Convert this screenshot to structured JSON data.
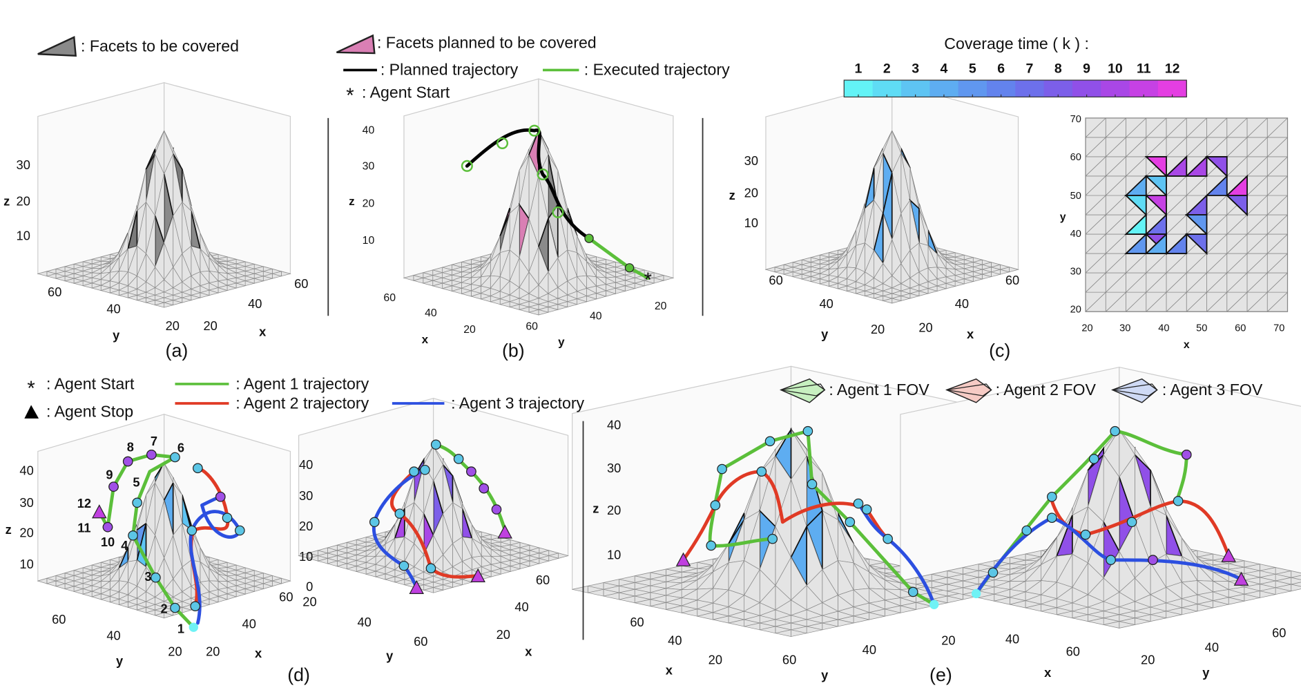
{
  "legend_top": {
    "facets_to_cover": ": Facets to be covered",
    "facets_planned": ": Facets planned to be covered",
    "planned_trajectory": ": Planned trajectory",
    "executed_trajectory": ": Executed trajectory",
    "agent_start": ": Agent Start"
  },
  "colorbar": {
    "title": "Coverage time ( k ) :",
    "ticks": [
      1,
      2,
      3,
      4,
      5,
      6,
      7,
      8,
      9,
      10,
      11,
      12
    ],
    "colors": [
      "#63f3f6",
      "#5fdcf5",
      "#5ec4f3",
      "#5eadf1",
      "#6097ef",
      "#6383ed",
      "#6d70eb",
      "#7c5fe9",
      "#9050e8",
      "#a947e6",
      "#c641e4",
      "#e43ee2"
    ]
  },
  "legend_d": {
    "agent_start": ": Agent Start",
    "agent_stop": ": Agent Stop",
    "agent1": ": Agent 1 trajectory",
    "agent2": ": Agent 2 trajectory",
    "agent3": ": Agent 3 trajectory"
  },
  "legend_e": {
    "agent1_fov": ": Agent 1 FOV",
    "agent2_fov": ": Agent 2 FOV",
    "agent3_fov": ": Agent 3 FOV"
  },
  "panels": {
    "a": {
      "label": "(a)",
      "z_label": "z",
      "z_ticks": [
        10,
        20,
        30
      ],
      "y_label": "y",
      "y_ticks": [
        20,
        40,
        60
      ],
      "x_label": "x",
      "x_ticks": [
        20,
        40,
        60
      ]
    },
    "b": {
      "label": "(b)",
      "z_label": "z",
      "z_ticks": [
        10,
        20,
        30,
        40
      ],
      "x_label": "x",
      "x_ticks": [
        20,
        40,
        60
      ],
      "y_label": "y",
      "y_ticks": [
        20,
        40,
        60
      ]
    },
    "c": {
      "label": "(c)",
      "z_label": "z",
      "z_ticks": [
        10,
        20,
        30
      ],
      "y_label": "y",
      "y_ticks": [
        20,
        40,
        60
      ],
      "x_label": "x",
      "x_ticks": [
        20,
        40,
        60
      ]
    },
    "c_top": {
      "x_label": "x",
      "x_ticks": [
        20,
        30,
        40,
        50,
        60,
        70
      ],
      "y_label": "y",
      "y_ticks": [
        20,
        30,
        40,
        50,
        60,
        70
      ]
    },
    "d": {
      "label": "(d)",
      "z_label": "z",
      "z_ticks": [
        10,
        20,
        30,
        40
      ],
      "y_label": "y",
      "y_ticks": [
        20,
        40,
        60
      ],
      "x_label": "x",
      "x_ticks": [
        20,
        40,
        60
      ],
      "waypoints": [
        1,
        2,
        3,
        4,
        5,
        6,
        7,
        8,
        9,
        10,
        11,
        12
      ]
    },
    "d2": {
      "z_ticks": [
        0,
        10,
        20,
        30,
        40
      ],
      "y_label": "y",
      "y_ticks": [
        20,
        40,
        60
      ],
      "x_label": "x",
      "x_ticks": [
        20,
        40,
        60
      ]
    },
    "e": {
      "label": "(e)",
      "z_label": "z",
      "z_ticks": [
        10,
        20,
        30,
        40
      ],
      "x_label": "x",
      "x_ticks": [
        20,
        40,
        60
      ],
      "y_label": "y",
      "y_ticks": [
        20,
        40,
        60
      ]
    },
    "e2": {
      "x_label": "x",
      "x_ticks": [
        40,
        60
      ],
      "y_label": "y",
      "y_ticks": [
        20,
        40,
        60
      ]
    }
  }
}
